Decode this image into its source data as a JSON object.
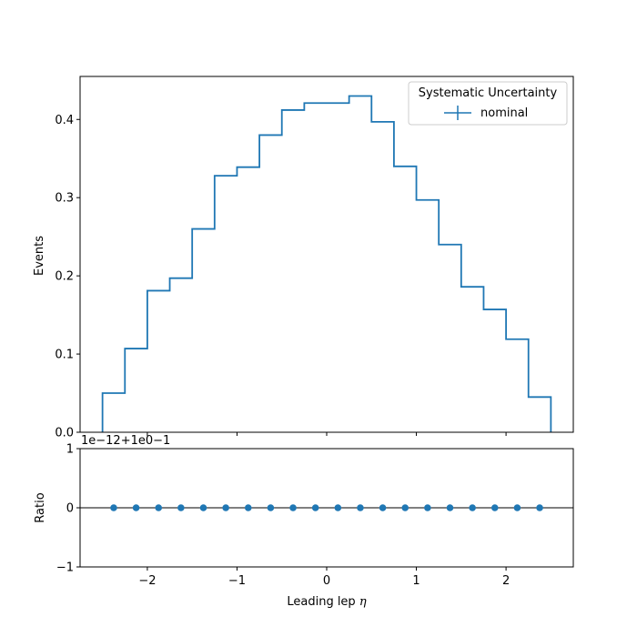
{
  "chart_data": [
    {
      "type": "step",
      "panel": "main",
      "ylabel": "Events",
      "ylim": [
        0,
        0.455
      ],
      "xlim": [
        -2.75,
        2.75
      ],
      "yticks": [
        0.0,
        0.1,
        0.2,
        0.3,
        0.4
      ],
      "ytick_labels": [
        "0.0",
        "0.1",
        "0.2",
        "0.3",
        "0.4"
      ],
      "bin_edges": [
        -2.5,
        -2.25,
        -2.0,
        -1.75,
        -1.5,
        -1.25,
        -1.0,
        -0.75,
        -0.5,
        -0.25,
        0.0,
        0.25,
        0.5,
        0.75,
        1.0,
        1.25,
        1.5,
        1.75,
        2.0,
        2.25,
        2.5
      ],
      "series": [
        {
          "name": "nominal",
          "color": "#1f77b4",
          "values": [
            0.05,
            0.107,
            0.181,
            0.197,
            0.26,
            0.328,
            0.339,
            0.38,
            0.412,
            0.421,
            0.421,
            0.43,
            0.397,
            0.34,
            0.297,
            0.24,
            0.186,
            0.157,
            0.119,
            0.045
          ]
        }
      ],
      "legend": {
        "title": "Systematic Uncertainty",
        "placement": "upper right",
        "entries": [
          "nominal"
        ]
      }
    },
    {
      "type": "scatter",
      "panel": "ratio",
      "ylabel": "Ratio",
      "xlabel": "Leading lep η",
      "ylim": [
        -1,
        1
      ],
      "xlim": [
        -2.75,
        2.75
      ],
      "yticks": [
        -1,
        0,
        1
      ],
      "ytick_labels": [
        "−1",
        "0",
        "1"
      ],
      "xticks": [
        -2,
        -1,
        0,
        1,
        2
      ],
      "xtick_labels": [
        "−2",
        "−1",
        "0",
        "1",
        "2"
      ],
      "offset_text": "1e−12+1e0−1",
      "reference_line": 0,
      "series": [
        {
          "name": "nominal",
          "color": "#1f77b4",
          "x": [
            -2.375,
            -2.125,
            -1.875,
            -1.625,
            -1.375,
            -1.125,
            -0.875,
            -0.625,
            -0.375,
            -0.125,
            0.125,
            0.375,
            0.625,
            0.875,
            1.125,
            1.375,
            1.625,
            1.875,
            2.125,
            2.375
          ],
          "y": [
            0,
            0,
            0,
            0,
            0,
            0,
            0,
            0,
            0,
            0,
            0,
            0,
            0,
            0,
            0,
            0,
            0,
            0,
            0,
            0
          ]
        }
      ]
    }
  ],
  "text": {
    "main_ylabel": "Events",
    "ratio_ylabel": "Ratio",
    "xlabel_main": "Leading lep ",
    "xlabel_symbol": "η",
    "offset_text": "1e−12+1e0−1",
    "legend_title": "Systematic Uncertainty",
    "legend_entry": "nominal"
  }
}
